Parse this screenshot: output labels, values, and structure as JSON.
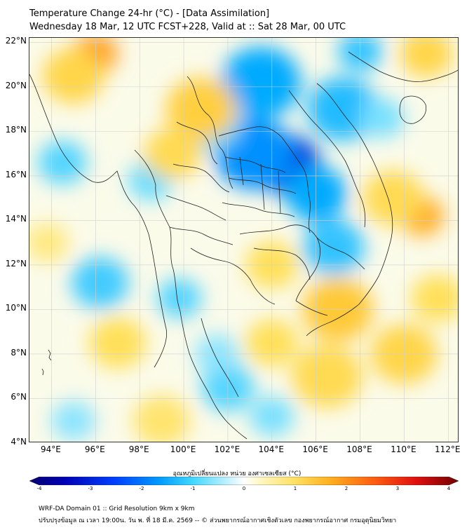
{
  "header": {
    "title_line1": "Temperature Change 24-hr (°C) - [Data Assimilation]",
    "title_line2": "Wednesday 18 Mar, 12 UTC FCST+228, Valid at :: Sat 28 Mar, 00 UTC"
  },
  "map": {
    "lat_labels": [
      "22°N",
      "20°N",
      "18°N",
      "16°N",
      "14°N",
      "12°N",
      "10°N",
      "8°N",
      "6°N",
      "4°N"
    ],
    "lon_labels": [
      "94°E",
      "96°E",
      "98°E",
      "100°E",
      "102°E",
      "104°E",
      "106°E",
      "108°E",
      "110°E",
      "112°E"
    ],
    "lon_range": [
      93.0,
      112.5
    ],
    "lat_range": [
      4.0,
      22.2
    ],
    "anomaly_blobs": [
      {
        "lon": 104.7,
        "lat": 16.5,
        "dt": -2.6,
        "r": 1.5
      },
      {
        "lon": 103.2,
        "lat": 17.0,
        "dt": -1.6,
        "r": 1.8
      },
      {
        "lon": 106.0,
        "lat": 15.2,
        "dt": -1.3,
        "r": 1.4
      },
      {
        "lon": 103.5,
        "lat": 20.2,
        "dt": -1.3,
        "r": 1.8
      },
      {
        "lon": 107.2,
        "lat": 19.0,
        "dt": -1.1,
        "r": 1.6
      },
      {
        "lon": 106.8,
        "lat": 12.8,
        "dt": -1.0,
        "r": 1.4
      },
      {
        "lon": 108.0,
        "lat": 21.6,
        "dt": -1.0,
        "r": 1.0
      },
      {
        "lon": 101.4,
        "lat": 18.2,
        "dt": -0.8,
        "r": 1.2
      },
      {
        "lon": 94.5,
        "lat": 16.6,
        "dt": -0.8,
        "r": 1.1
      },
      {
        "lon": 98.5,
        "lat": 15.8,
        "dt": -0.7,
        "r": 1.0
      },
      {
        "lon": 96.2,
        "lat": 11.2,
        "dt": -0.9,
        "r": 1.3
      },
      {
        "lon": 99.8,
        "lat": 10.5,
        "dt": -0.8,
        "r": 1.0
      },
      {
        "lon": 102.0,
        "lat": 6.5,
        "dt": -0.8,
        "r": 1.2
      },
      {
        "lon": 101.5,
        "lat": 8.0,
        "dt": -0.5,
        "r": 1.0
      },
      {
        "lon": 104.0,
        "lat": 5.2,
        "dt": -0.6,
        "r": 1.0
      },
      {
        "lon": 95.0,
        "lat": 5.0,
        "dt": -0.5,
        "r": 1.0
      },
      {
        "lon": 109.0,
        "lat": 18.6,
        "dt": -0.6,
        "r": 1.0
      },
      {
        "lon": 96.0,
        "lat": 21.5,
        "dt": 1.8,
        "r": 1.0
      },
      {
        "lon": 95.0,
        "lat": 20.5,
        "dt": 1.0,
        "r": 1.4
      },
      {
        "lon": 100.8,
        "lat": 19.0,
        "dt": 1.1,
        "r": 1.6
      },
      {
        "lon": 99.5,
        "lat": 17.0,
        "dt": 0.9,
        "r": 1.3
      },
      {
        "lon": 107.0,
        "lat": 10.0,
        "dt": 1.2,
        "r": 1.6
      },
      {
        "lon": 104.0,
        "lat": 12.0,
        "dt": 0.8,
        "r": 1.2
      },
      {
        "lon": 110.8,
        "lat": 14.2,
        "dt": 1.6,
        "r": 1.0
      },
      {
        "lon": 109.5,
        "lat": 15.0,
        "dt": 0.9,
        "r": 1.4
      },
      {
        "lon": 111.0,
        "lat": 21.5,
        "dt": 1.0,
        "r": 1.2
      },
      {
        "lon": 110.0,
        "lat": 8.0,
        "dt": 1.0,
        "r": 1.5
      },
      {
        "lon": 106.5,
        "lat": 7.0,
        "dt": 0.9,
        "r": 1.6
      },
      {
        "lon": 104.0,
        "lat": 8.5,
        "dt": 0.8,
        "r": 1.2
      },
      {
        "lon": 97.0,
        "lat": 8.5,
        "dt": 0.8,
        "r": 1.3
      },
      {
        "lon": 99.0,
        "lat": 5.0,
        "dt": 0.7,
        "r": 1.3
      },
      {
        "lon": 93.8,
        "lat": 13.0,
        "dt": 0.6,
        "r": 1.0
      },
      {
        "lon": 111.5,
        "lat": 10.5,
        "dt": 0.8,
        "r": 1.2
      }
    ]
  },
  "colorbar": {
    "title": "อุณหภูมิเปลี่ยนแปลง หน่วย องศาเซลเซียส (°C)",
    "ticks": [
      "-4",
      "-3",
      "-2",
      "-1",
      "0",
      "1",
      "2",
      "3",
      "4"
    ],
    "range": [
      -4,
      4
    ]
  },
  "footer": {
    "line1": "WRF-DA Domain 01 :: Grid Resolution 9km x 9km",
    "line2": "ปรับปรุงข้อมูล ณ เวลา 19:00น. วัน พ. ที่ 18 มี.ค. 2569 -- © ส่วนพยากรณ์อากาศเชิงตัวเลข กองพยากรณ์อากาศ กรมอุตุนิยมวิทยา"
  }
}
